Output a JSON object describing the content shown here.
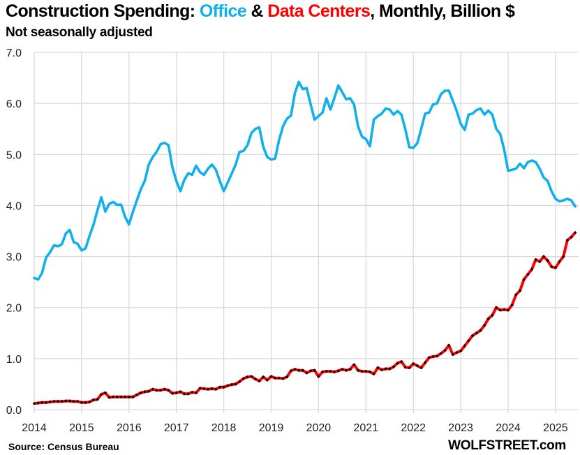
{
  "header": {
    "title_prefix": "Construction Spending: ",
    "title_office": "Office",
    "title_amp": " & ",
    "title_dc": "Data Centers",
    "title_suffix": ", Monthly, Billion $",
    "subtitle": "Not seasonally adjusted"
  },
  "footer": {
    "source": "Source: Census Bureau",
    "brand": "WOLFSTREET.com"
  },
  "colors": {
    "office": "#0FB0EB",
    "data_centers": "#FF0000",
    "data_center_markers": "#000000",
    "grid": "#D9D9D9"
  },
  "chart_data": {
    "type": "line",
    "title": "Construction Spending: Office & Data Centers, Monthly, Billion $",
    "subtitle": "Not seasonally adjusted",
    "xlabel": "",
    "ylabel": "",
    "x_start": "2014-01",
    "frequency": "monthly",
    "x_ticks": [
      "2014",
      "2015",
      "2016",
      "2017",
      "2018",
      "2019",
      "2020",
      "2021",
      "2022",
      "2023",
      "2024",
      "2025"
    ],
    "y_ticks": [
      "0.0",
      "1.0",
      "2.0",
      "3.0",
      "4.0",
      "5.0",
      "6.0",
      "7.0"
    ],
    "ylim": [
      0,
      7
    ],
    "grid": true,
    "legend": "in-title",
    "source": "Source: Census Bureau",
    "series": [
      {
        "name": "Office",
        "values": [
          2.58,
          2.55,
          2.68,
          2.98,
          3.08,
          3.22,
          3.2,
          3.24,
          3.45,
          3.52,
          3.28,
          3.25,
          3.12,
          3.16,
          3.4,
          3.62,
          3.9,
          4.16,
          3.88,
          4.03,
          4.07,
          4.01,
          4.02,
          3.78,
          3.63,
          3.88,
          4.1,
          4.32,
          4.48,
          4.8,
          4.95,
          5.05,
          5.2,
          5.23,
          5.18,
          4.75,
          4.48,
          4.28,
          4.5,
          4.63,
          4.6,
          4.78,
          4.65,
          4.6,
          4.72,
          4.8,
          4.7,
          4.48,
          4.28,
          4.45,
          4.62,
          4.8,
          5.05,
          5.07,
          5.18,
          5.42,
          5.5,
          5.53,
          5.15,
          4.95,
          4.9,
          4.92,
          5.28,
          5.55,
          5.7,
          5.76,
          6.2,
          6.42,
          6.28,
          6.3,
          5.98,
          5.68,
          5.75,
          5.82,
          6.1,
          5.88,
          6.1,
          6.35,
          6.22,
          6.08,
          6.1,
          5.98,
          5.55,
          5.35,
          5.3,
          5.16,
          5.68,
          5.75,
          5.8,
          5.9,
          5.88,
          5.78,
          5.85,
          5.78,
          5.48,
          5.14,
          5.13,
          5.22,
          5.5,
          5.8,
          5.82,
          5.98,
          6.0,
          6.18,
          6.25,
          6.25,
          6.05,
          5.85,
          5.6,
          5.48,
          5.78,
          5.8,
          5.87,
          5.9,
          5.78,
          5.86,
          5.78,
          5.5,
          5.4,
          5.1,
          4.68,
          4.7,
          4.72,
          4.82,
          4.73,
          4.85,
          4.88,
          4.85,
          4.72,
          4.55,
          4.48,
          4.28,
          4.13,
          4.08,
          4.1,
          4.13,
          4.1,
          3.98
        ]
      },
      {
        "name": "Data Centers",
        "values": [
          0.12,
          0.13,
          0.14,
          0.14,
          0.15,
          0.16,
          0.16,
          0.16,
          0.17,
          0.17,
          0.16,
          0.16,
          0.14,
          0.14,
          0.15,
          0.19,
          0.2,
          0.3,
          0.33,
          0.24,
          0.25,
          0.25,
          0.25,
          0.25,
          0.25,
          0.25,
          0.29,
          0.33,
          0.35,
          0.36,
          0.4,
          0.38,
          0.38,
          0.4,
          0.38,
          0.32,
          0.33,
          0.35,
          0.31,
          0.31,
          0.34,
          0.33,
          0.42,
          0.41,
          0.4,
          0.41,
          0.4,
          0.44,
          0.44,
          0.47,
          0.49,
          0.5,
          0.55,
          0.61,
          0.64,
          0.65,
          0.6,
          0.56,
          0.64,
          0.58,
          0.65,
          0.62,
          0.62,
          0.61,
          0.64,
          0.76,
          0.79,
          0.77,
          0.77,
          0.72,
          0.76,
          0.77,
          0.65,
          0.74,
          0.75,
          0.75,
          0.74,
          0.76,
          0.79,
          0.77,
          0.79,
          0.88,
          0.77,
          0.75,
          0.75,
          0.74,
          0.7,
          0.82,
          0.78,
          0.8,
          0.8,
          0.84,
          0.91,
          0.94,
          0.83,
          0.82,
          0.9,
          0.86,
          0.82,
          0.92,
          1.02,
          1.04,
          1.05,
          1.1,
          1.16,
          1.26,
          1.08,
          1.12,
          1.15,
          1.25,
          1.35,
          1.45,
          1.5,
          1.55,
          1.65,
          1.78,
          1.85,
          2.0,
          1.95,
          1.96,
          1.95,
          2.05,
          2.25,
          2.33,
          2.55,
          2.65,
          2.75,
          2.94,
          2.9,
          3.0,
          2.92,
          2.8,
          2.78,
          2.9,
          3.0,
          3.32,
          3.38,
          3.47
        ]
      }
    ]
  }
}
